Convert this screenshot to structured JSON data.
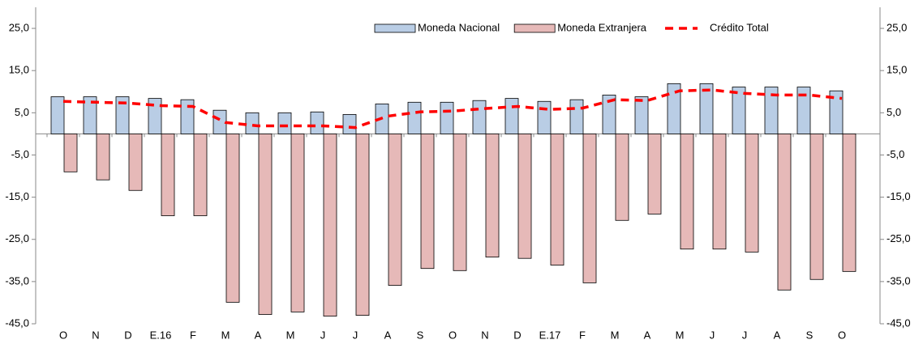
{
  "chart_data": {
    "type": "bar-line",
    "categories": [
      "O",
      "N",
      "D",
      "E.16",
      "F",
      "M",
      "A",
      "M",
      "J",
      "J",
      "A",
      "S",
      "O",
      "N",
      "D",
      "E.17",
      "F",
      "M",
      "A",
      "M",
      "J",
      "J",
      "A",
      "S",
      "O"
    ],
    "series": [
      {
        "name": "Moneda Nacional",
        "type": "bar",
        "color": "#b9cde5",
        "values": [
          8.8,
          8.8,
          8.8,
          8.4,
          8.1,
          5.6,
          5.0,
          5.0,
          5.2,
          4.6,
          7.1,
          7.5,
          7.5,
          7.9,
          8.4,
          7.7,
          8.1,
          9.2,
          8.8,
          11.9,
          11.9,
          11.1,
          11.1,
          11.1,
          10.2
        ]
      },
      {
        "name": "Moneda Extranjera",
        "type": "bar",
        "color": "#e6b9b8",
        "values": [
          -9.0,
          -10.9,
          -13.4,
          -19.4,
          -19.4,
          -39.9,
          -42.8,
          -42.2,
          -43.2,
          -43.0,
          -35.9,
          -31.9,
          -32.4,
          -29.2,
          -29.5,
          -31.1,
          -35.3,
          -20.5,
          -19.0,
          -27.3,
          -27.3,
          -28.0,
          -37.0,
          -34.5,
          -32.6
        ]
      },
      {
        "name": "Crédito Total",
        "type": "line",
        "color": "#ff0000",
        "values": [
          7.7,
          7.5,
          7.3,
          6.7,
          6.5,
          2.7,
          1.9,
          1.9,
          1.9,
          1.5,
          4.2,
          5.2,
          5.4,
          6.0,
          6.5,
          5.8,
          6.1,
          8.1,
          7.9,
          10.2,
          10.4,
          9.6,
          9.2,
          9.2,
          8.4
        ]
      }
    ],
    "ylim": [
      -45,
      30
    ],
    "yticks": [
      {
        "value": -45,
        "label": "-45,0"
      },
      {
        "value": -35,
        "label": "-35,0"
      },
      {
        "value": -25,
        "label": "-25,0"
      },
      {
        "value": -15,
        "label": "-15,0"
      },
      {
        "value": -5,
        "label": "-5,0"
      },
      {
        "value": 5,
        "label": "5,0"
      },
      {
        "value": 15,
        "label": "15,0"
      },
      {
        "value": 25,
        "label": "25,0"
      }
    ],
    "y2lim": [
      -45,
      30
    ],
    "y2ticks": [
      {
        "value": -45,
        "label": "-45,0"
      },
      {
        "value": -35,
        "label": "-35,0"
      },
      {
        "value": -25,
        "label": "-25,0"
      },
      {
        "value": -15,
        "label": "-15,0"
      },
      {
        "value": -5,
        "label": "-5,0"
      },
      {
        "value": 5,
        "label": "5,0"
      },
      {
        "value": 15,
        "label": "15,0"
      },
      {
        "value": 25,
        "label": "25,0"
      }
    ],
    "legend": "top-right"
  }
}
